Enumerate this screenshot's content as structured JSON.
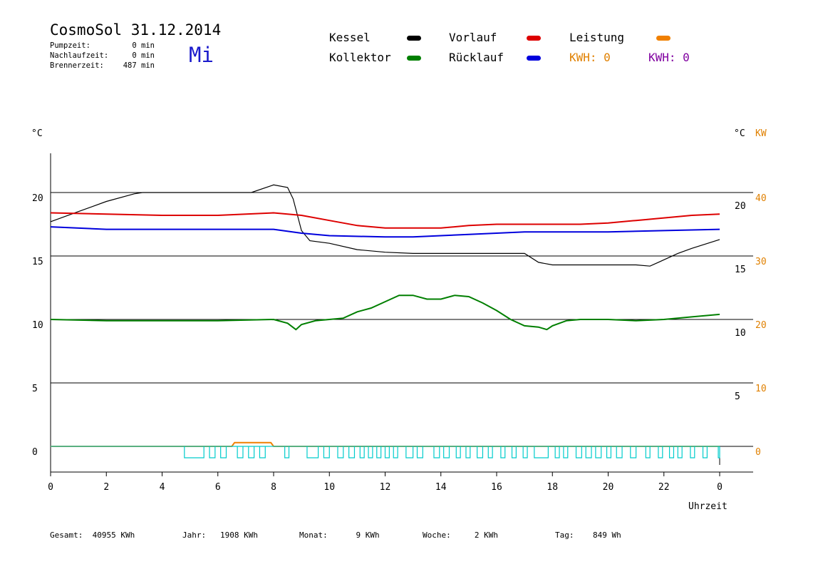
{
  "header": {
    "title": "CosmoSol 31.12.2014",
    "weekday": "Mi",
    "stats": [
      {
        "label": "Pumpzeit:",
        "value": "0 min"
      },
      {
        "label": "Nachlaufzeit:",
        "value": "0 min"
      },
      {
        "label": "Brennerzeit:",
        "value": "487 min"
      }
    ]
  },
  "legend": {
    "kessel": {
      "label": "Kessel",
      "color": "#000000"
    },
    "kollektor": {
      "label": "Kollektor",
      "color": "#007f00"
    },
    "vorlauf": {
      "label": "Vorlauf",
      "color": "#dd0000"
    },
    "ruecklauf": {
      "label": "Rücklauf",
      "color": "#0000dd"
    },
    "leistung": {
      "label": "Leistung",
      "color": "#f08000"
    },
    "kwh_orange": {
      "label": "KWH: 0",
      "color": "#e08000"
    },
    "kwh_purple": {
      "label": "KWH: 0",
      "color": "#8000a0"
    }
  },
  "footer": {
    "gesamt": "Gesamt:  40955 KWh",
    "jahr": "Jahr:   1908 KWh",
    "monat": "Monat:      9 KWh",
    "woche": "Woche:     2 KWh",
    "tag": "Tag:    849 Wh"
  },
  "chart_data": {
    "type": "line",
    "title": "CosmoSol 31.12.2014",
    "xlabel": "Uhrzeit",
    "ylabel_left": "°C",
    "ylabel_right": "°C",
    "ylabel_right2": "KW",
    "xlim": [
      0,
      24
    ],
    "ylim": [
      -2,
      23.5
    ],
    "x_ticks": [
      "0",
      "2",
      "4",
      "6",
      "8",
      "10",
      "12",
      "14",
      "16",
      "18",
      "20",
      "22",
      "0"
    ],
    "y_ticks_left": [
      "0",
      "5",
      "10",
      "15",
      "20"
    ],
    "y_ticks_right": [
      "5",
      "10",
      "15",
      "20"
    ],
    "y_ticks_kw": [
      "0",
      "10",
      "20",
      "30",
      "40"
    ],
    "grid": true,
    "series": [
      {
        "name": "Kessel",
        "color": "#000000",
        "x": [
          0,
          1,
          2,
          3,
          3.3,
          7.2,
          8,
          8.5,
          8.7,
          9,
          9.3,
          10,
          11,
          12,
          13,
          15,
          17,
          17.5,
          18,
          19,
          20,
          21,
          21.5,
          21.8,
          22.5,
          23,
          24
        ],
        "y": [
          17.7,
          18.5,
          19.3,
          19.9,
          20,
          20,
          20.6,
          20.4,
          19.5,
          17,
          16.2,
          16.0,
          15.5,
          15.3,
          15.2,
          15.2,
          15.2,
          14.5,
          14.3,
          14.3,
          14.3,
          14.3,
          14.2,
          14.5,
          15.2,
          15.6,
          16.3
        ]
      },
      {
        "name": "Vorlauf",
        "color": "#dd0000",
        "x": [
          0,
          2,
          4,
          6,
          8,
          9,
          10,
          11,
          12,
          13,
          14,
          15,
          16,
          17,
          18,
          19,
          20,
          21,
          22,
          23,
          24
        ],
        "y": [
          18.4,
          18.3,
          18.2,
          18.2,
          18.4,
          18.2,
          17.8,
          17.4,
          17.2,
          17.2,
          17.2,
          17.4,
          17.5,
          17.5,
          17.5,
          17.5,
          17.6,
          17.8,
          18,
          18.2,
          18.3
        ]
      },
      {
        "name": "Rücklauf",
        "color": "#0000dd",
        "x": [
          0,
          2,
          4,
          6,
          8,
          9,
          10,
          12,
          13,
          14,
          15,
          16,
          17,
          18,
          19,
          20,
          22,
          24
        ],
        "y": [
          17.3,
          17.1,
          17.1,
          17.1,
          17.1,
          16.8,
          16.6,
          16.5,
          16.5,
          16.6,
          16.7,
          16.8,
          16.9,
          16.9,
          16.9,
          16.9,
          17,
          17.1
        ]
      },
      {
        "name": "Kollektor",
        "color": "#007f00",
        "x": [
          0,
          2,
          4,
          6,
          8,
          8.5,
          8.8,
          9,
          9.5,
          10,
          10.5,
          11,
          11.5,
          12,
          12.5,
          13,
          13.5,
          14,
          14.5,
          15,
          15.5,
          16,
          16.5,
          17,
          17.5,
          17.8,
          18,
          18.5,
          19,
          20,
          21,
          22,
          23,
          24
        ],
        "y": [
          10,
          9.9,
          9.9,
          9.9,
          10,
          9.7,
          9.2,
          9.6,
          9.9,
          10,
          10.1,
          10.6,
          10.9,
          11.4,
          11.9,
          11.9,
          11.6,
          11.6,
          11.9,
          11.8,
          11.3,
          10.7,
          10,
          9.5,
          9.4,
          9.2,
          9.5,
          9.9,
          10,
          10,
          9.9,
          10,
          10.2,
          10.4
        ]
      },
      {
        "name": "Leistung",
        "color": "#f08000",
        "x": [
          0,
          6.5,
          6.6,
          7.9,
          8,
          24
        ],
        "y": [
          0,
          0,
          0.3,
          0.3,
          0,
          0
        ]
      }
    ],
    "pump_pulses_cyan": [
      [
        4.8,
        5.5
      ],
      [
        5.7,
        5.9
      ],
      [
        6.1,
        6.3
      ],
      [
        6.7,
        6.9
      ],
      [
        7.1,
        7.3
      ],
      [
        7.5,
        7.7
      ],
      [
        8.4,
        8.55
      ],
      [
        9.2,
        9.6
      ],
      [
        9.8,
        10.0
      ],
      [
        10.3,
        10.5
      ],
      [
        10.7,
        10.9
      ],
      [
        11.1,
        11.25
      ],
      [
        11.4,
        11.55
      ],
      [
        11.7,
        11.85
      ],
      [
        12,
        12.15
      ],
      [
        12.3,
        12.45
      ],
      [
        12.75,
        13.0
      ],
      [
        13.15,
        13.35
      ],
      [
        13.75,
        13.95
      ],
      [
        14.1,
        14.3
      ],
      [
        14.55,
        14.7
      ],
      [
        14.9,
        15.05
      ],
      [
        15.3,
        15.5
      ],
      [
        15.7,
        15.85
      ],
      [
        16.15,
        16.3
      ],
      [
        16.55,
        16.7
      ],
      [
        16.95,
        17.1
      ],
      [
        17.35,
        17.85
      ],
      [
        18.1,
        18.25
      ],
      [
        18.4,
        18.55
      ],
      [
        18.85,
        19.05
      ],
      [
        19.2,
        19.4
      ],
      [
        19.55,
        19.75
      ],
      [
        19.95,
        20.1
      ],
      [
        20.3,
        20.5
      ],
      [
        20.8,
        21.0
      ],
      [
        21.35,
        21.5
      ],
      [
        21.8,
        21.95
      ],
      [
        22.2,
        22.35
      ],
      [
        22.5,
        22.65
      ],
      [
        22.95,
        23.1
      ],
      [
        23.4,
        23.55
      ],
      [
        23.95,
        24
      ]
    ]
  }
}
